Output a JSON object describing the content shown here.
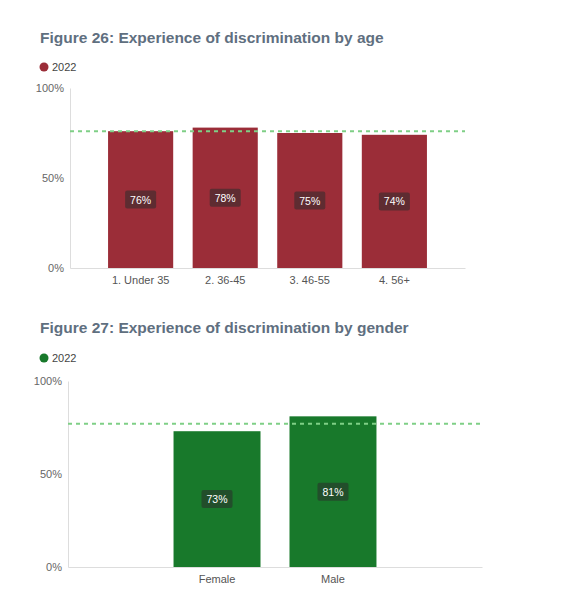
{
  "chart_data": [
    {
      "type": "bar",
      "title": "Figure 26: Experience of discrimination by age",
      "categories": [
        "1. Under 35",
        "2. 36-45",
        "3. 46-55",
        "4. 56+"
      ],
      "series": [
        {
          "name": "2022",
          "color": "#9b2d38",
          "values": [
            76,
            78,
            75,
            74
          ],
          "value_labels": [
            "76%",
            "78%",
            "75%",
            "74%"
          ]
        }
      ],
      "ylim": [
        0,
        100
      ],
      "yticks": [
        {
          "value": 0,
          "label": "0%"
        },
        {
          "value": 50,
          "label": "50%"
        },
        {
          "value": 100,
          "label": "100%"
        }
      ],
      "grid": false,
      "legend": "top-left",
      "data_labels": true,
      "reference_line": 76
    },
    {
      "type": "bar",
      "title": "Figure 27: Experience of discrimination by gender",
      "categories": [
        "Female",
        "Male"
      ],
      "series": [
        {
          "name": "2022",
          "color": "#18792b",
          "values": [
            73,
            81
          ],
          "value_labels": [
            "73%",
            "81%"
          ]
        }
      ],
      "ylim": [
        0,
        100
      ],
      "yticks": [
        {
          "value": 0,
          "label": "0%"
        },
        {
          "value": 50,
          "label": "50%"
        },
        {
          "value": 100,
          "label": "100%"
        }
      ],
      "grid": false,
      "legend": "top-left",
      "data_labels": true,
      "reference_line": 77
    }
  ]
}
